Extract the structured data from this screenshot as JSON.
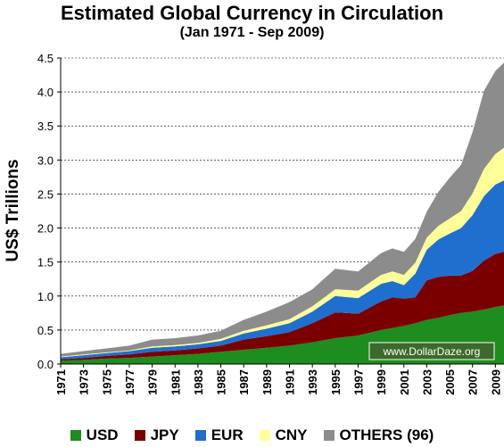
{
  "chart_data": {
    "type": "area",
    "stacked": true,
    "title": "Estimated Global Currency in Circulation",
    "subtitle": "(Jan 1971 - Sep 2009)",
    "ylabel": "US$ Trillions",
    "ylim": [
      0,
      4.5
    ],
    "yticks": [
      "0.0",
      "0.5",
      "1.0",
      "1.5",
      "2.0",
      "2.5",
      "3.0",
      "3.5",
      "4.0",
      "4.5"
    ],
    "xticks": [
      "1971",
      "1973",
      "1975",
      "1977",
      "1979",
      "1981",
      "1983",
      "1985",
      "1987",
      "1989",
      "1991",
      "1993",
      "1995",
      "1997",
      "1999",
      "2001",
      "2003",
      "2005",
      "2007",
      "2009"
    ],
    "x_range": [
      1971,
      2009.75
    ],
    "grid": "horizontal-dashed",
    "legend": "bottom",
    "watermark": "www.DollarDaze.org",
    "x": [
      1971,
      1973,
      1975,
      1977,
      1979,
      1981,
      1983,
      1985,
      1987,
      1989,
      1991,
      1993,
      1995,
      1997,
      1999,
      2000,
      2001,
      2002,
      2003,
      2004,
      2005,
      2006,
      2007,
      2008,
      2009,
      2009.75
    ],
    "series": [
      {
        "name": "USD",
        "color": "#1e8c1e",
        "values": [
          0.05,
          0.06,
          0.08,
          0.09,
          0.11,
          0.13,
          0.15,
          0.18,
          0.21,
          0.24,
          0.27,
          0.32,
          0.38,
          0.42,
          0.5,
          0.53,
          0.56,
          0.6,
          0.65,
          0.68,
          0.72,
          0.75,
          0.77,
          0.8,
          0.84,
          0.86
        ]
      },
      {
        "name": "JPY",
        "color": "#7a0000",
        "values": [
          0.02,
          0.03,
          0.04,
          0.05,
          0.07,
          0.07,
          0.08,
          0.09,
          0.15,
          0.17,
          0.2,
          0.28,
          0.38,
          0.32,
          0.42,
          0.45,
          0.4,
          0.38,
          0.58,
          0.6,
          0.58,
          0.55,
          0.6,
          0.72,
          0.78,
          0.79
        ]
      },
      {
        "name": "EUR",
        "color": "#1f6fce",
        "values": [
          0.03,
          0.04,
          0.04,
          0.05,
          0.06,
          0.06,
          0.06,
          0.07,
          0.09,
          0.11,
          0.13,
          0.17,
          0.24,
          0.23,
          0.26,
          0.24,
          0.2,
          0.35,
          0.45,
          0.55,
          0.62,
          0.7,
          0.82,
          0.95,
          1.02,
          1.05
        ]
      },
      {
        "name": "CNY",
        "color": "#ffff99",
        "values": [
          0.01,
          0.01,
          0.01,
          0.01,
          0.02,
          0.02,
          0.02,
          0.03,
          0.04,
          0.05,
          0.06,
          0.08,
          0.1,
          0.11,
          0.13,
          0.14,
          0.15,
          0.16,
          0.18,
          0.2,
          0.22,
          0.25,
          0.32,
          0.4,
          0.45,
          0.48
        ]
      },
      {
        "name": "OTHERS (96)",
        "color": "#8c8c8c",
        "values": [
          0.04,
          0.05,
          0.06,
          0.07,
          0.1,
          0.1,
          0.11,
          0.12,
          0.16,
          0.2,
          0.25,
          0.25,
          0.3,
          0.28,
          0.32,
          0.34,
          0.34,
          0.35,
          0.38,
          0.5,
          0.6,
          0.68,
          0.9,
          1.15,
          1.22,
          1.25
        ]
      }
    ]
  }
}
